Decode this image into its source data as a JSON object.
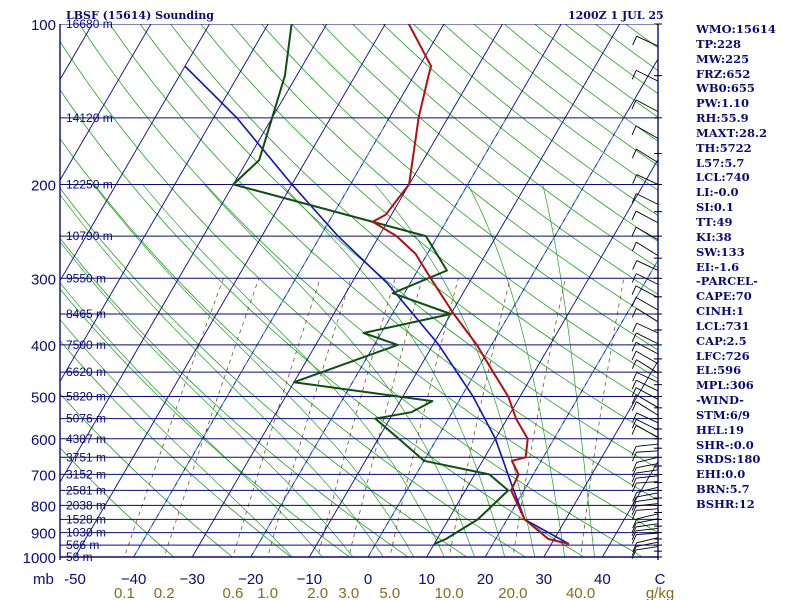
{
  "header": {
    "title_left": "LBSF (15614) Sounding",
    "title_right": "1200Z  1 JUL 25"
  },
  "chart_data": {
    "type": "skew-t",
    "station": "LBSF (15614)",
    "pressure_levels": [
      100,
      200,
      300,
      400,
      500,
      600,
      700,
      800,
      900,
      1000
    ],
    "pressure_axis_unit": "mb",
    "height_labels": [
      {
        "p": 100,
        "label": "16680 m"
      },
      {
        "p": 150,
        "label": "14120 m"
      },
      {
        "p": 200,
        "label": "12250 m"
      },
      {
        "p": 250,
        "label": "10790 m"
      },
      {
        "p": 300,
        "label": "9550 m"
      },
      {
        "p": 350,
        "label": "8465 m"
      },
      {
        "p": 400,
        "label": "7500 m"
      },
      {
        "p": 450,
        "label": "6620 m"
      },
      {
        "p": 500,
        "label": "5820 m"
      },
      {
        "p": 550,
        "label": "5076 m"
      },
      {
        "p": 600,
        "label": "4387 m"
      },
      {
        "p": 650,
        "label": "3751 m"
      },
      {
        "p": 700,
        "label": "3152 m"
      },
      {
        "p": 750,
        "label": "2581 m"
      },
      {
        "p": 800,
        "label": "2038 m"
      },
      {
        "p": 850,
        "label": "1528 m"
      },
      {
        "p": 900,
        "label": "1030 m"
      },
      {
        "p": 950,
        "label": "566 m"
      },
      {
        "p": 1000,
        "label": "58 m"
      }
    ],
    "temperature_ticks": [
      -50,
      -40,
      -30,
      -20,
      -10,
      0,
      10,
      20,
      30,
      40
    ],
    "temperature_tick_labels": [
      "-50",
      "−40",
      "−30",
      "−20",
      "−10",
      "0",
      "10",
      "20",
      "30",
      "40"
    ],
    "temperature_axis_unit": "C",
    "mixing_ratio_ticks": [
      0.1,
      0.2,
      0.6,
      1.0,
      2.0,
      3.0,
      5.0,
      10.0,
      20.0,
      40.0
    ],
    "mixing_ratio_tick_labels": [
      "0.1",
      "0.2",
      "0.6",
      "1.0",
      "2.0",
      "3.0",
      "5.0",
      "10.0",
      "20.0",
      "40.0"
    ],
    "mixing_ratio_unit": "g/kg",
    "temperature_profile": [
      {
        "p": 945,
        "t": 33.0
      },
      {
        "p": 925,
        "t": 29.0
      },
      {
        "p": 850,
        "t": 23.0
      },
      {
        "p": 750,
        "t": 17.8
      },
      {
        "p": 700,
        "t": 17.5
      },
      {
        "p": 660,
        "t": 15.0
      },
      {
        "p": 650,
        "t": 17.0
      },
      {
        "p": 600,
        "t": 15.5
      },
      {
        "p": 550,
        "t": 11.5
      },
      {
        "p": 500,
        "t": 8.0
      },
      {
        "p": 450,
        "t": 3.0
      },
      {
        "p": 400,
        "t": -2.5
      },
      {
        "p": 350,
        "t": -9.5
      },
      {
        "p": 300,
        "t": -17.0
      },
      {
        "p": 270,
        "t": -22.0
      },
      {
        "p": 250,
        "t": -27.0
      },
      {
        "p": 235,
        "t": -32.5
      },
      {
        "p": 228,
        "t": -31.0
      },
      {
        "p": 200,
        "t": -30.0
      },
      {
        "p": 150,
        "t": -35.0
      },
      {
        "p": 125,
        "t": -37.5
      },
      {
        "p": 120,
        "t": -38.0
      },
      {
        "p": 100,
        "t": -46.0
      }
    ],
    "dewpoint_profile": [
      {
        "p": 945,
        "t": 10.0
      },
      {
        "p": 925,
        "t": 11.5
      },
      {
        "p": 850,
        "t": 15.0
      },
      {
        "p": 750,
        "t": 17.3
      },
      {
        "p": 700,
        "t": 12.5
      },
      {
        "p": 660,
        "t": 0.0
      },
      {
        "p": 600,
        "t": -6.5
      },
      {
        "p": 550,
        "t": -12.5
      },
      {
        "p": 535,
        "t": -7.0
      },
      {
        "p": 510,
        "t": -4.5
      },
      {
        "p": 470,
        "t": -30.0
      },
      {
        "p": 400,
        "t": -16.0
      },
      {
        "p": 380,
        "t": -23.0
      },
      {
        "p": 350,
        "t": -10.0
      },
      {
        "p": 320,
        "t": -22.0
      },
      {
        "p": 290,
        "t": -15.0
      },
      {
        "p": 250,
        "t": -22.0
      },
      {
        "p": 200,
        "t": -60.0
      },
      {
        "p": 180,
        "t": -58.0
      },
      {
        "p": 150,
        "t": -60.0
      },
      {
        "p": 125,
        "t": -62.0
      },
      {
        "p": 100,
        "t": -66.0
      }
    ],
    "parcel_profile": [
      {
        "p": 945,
        "t": 33.0
      },
      {
        "p": 850,
        "t": 23.0
      },
      {
        "p": 731,
        "t": 17.3
      },
      {
        "p": 600,
        "t": 10.0
      },
      {
        "p": 500,
        "t": 2.0
      },
      {
        "p": 400,
        "t": -9.0
      },
      {
        "p": 306,
        "t": -24.0
      },
      {
        "p": 250,
        "t": -37.0
      },
      {
        "p": 200,
        "t": -50.0
      },
      {
        "p": 150,
        "t": -66.0
      },
      {
        "p": 120,
        "t": -80.0
      }
    ]
  },
  "indices": [
    "WMO:15614",
    "TP:228",
    "MW:225",
    "FRZ:652",
    "WB0:655",
    "PW:1.10",
    "RH:55.9",
    "MAXT:28.2",
    "TH:5722",
    "L57:5.7",
    "LCL:740",
    "LI:-0.0",
    "SI:0.1",
    "TT:49",
    "KI:38",
    "SW:133",
    "EI:-1.6",
    "-PARCEL-",
    "CAPE:70",
    "CINH:1",
    "LCL:731",
    "CAP:2.5",
    "LFC:726",
    "EL:596",
    "MPL:306",
    "-WIND-",
    "STM:6/9",
    "HEL:19",
    "SHR-:0.0",
    "SRDS:180",
    "EHI:0.0",
    "BRN:5.7",
    "BSHR:12"
  ],
  "colors": {
    "isobar": "#0a0a7a",
    "isotherm": "#0a0a7a",
    "dry_adiabat": "#22a022",
    "moist_adiabat": "#22a022",
    "mixing_ratio": "#6a5a2a",
    "temperature": "#b01010",
    "dewpoint": "#104f10",
    "parcel": "#1010c0",
    "axis_label": "#0a0a7a",
    "mixing_label": "#8a6a1a"
  }
}
